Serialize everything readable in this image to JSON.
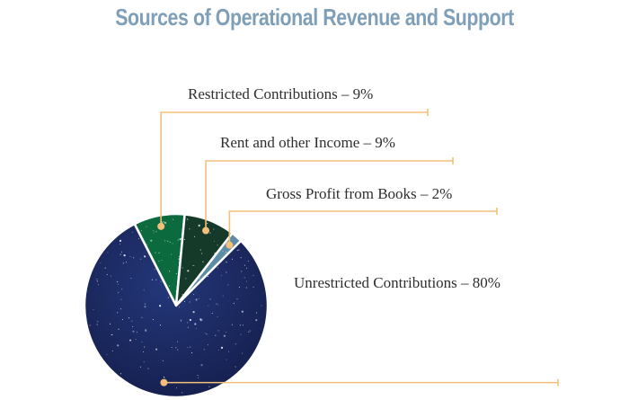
{
  "chart_data": {
    "type": "pie",
    "title": "Sources of Operational Revenue and Support",
    "slices": [
      {
        "label": "Restricted Contributions – 9%",
        "category": "Restricted Contributions",
        "value": 9,
        "color": "#0c6b3e"
      },
      {
        "label": "Rent and other Income – 9%",
        "category": "Rent and other Income",
        "value": 9,
        "color": "#163a2a"
      },
      {
        "label": "Gross Profit from Books – 2%",
        "category": "Gross Profit from Books",
        "value": 2,
        "color": "#5c8ca6"
      },
      {
        "label": "Unrestricted Contributions – 80%",
        "category": "Unrestricted Contributions",
        "value": 80,
        "color": "#1e2d66"
      }
    ],
    "leader_color": "#f2c07a"
  }
}
